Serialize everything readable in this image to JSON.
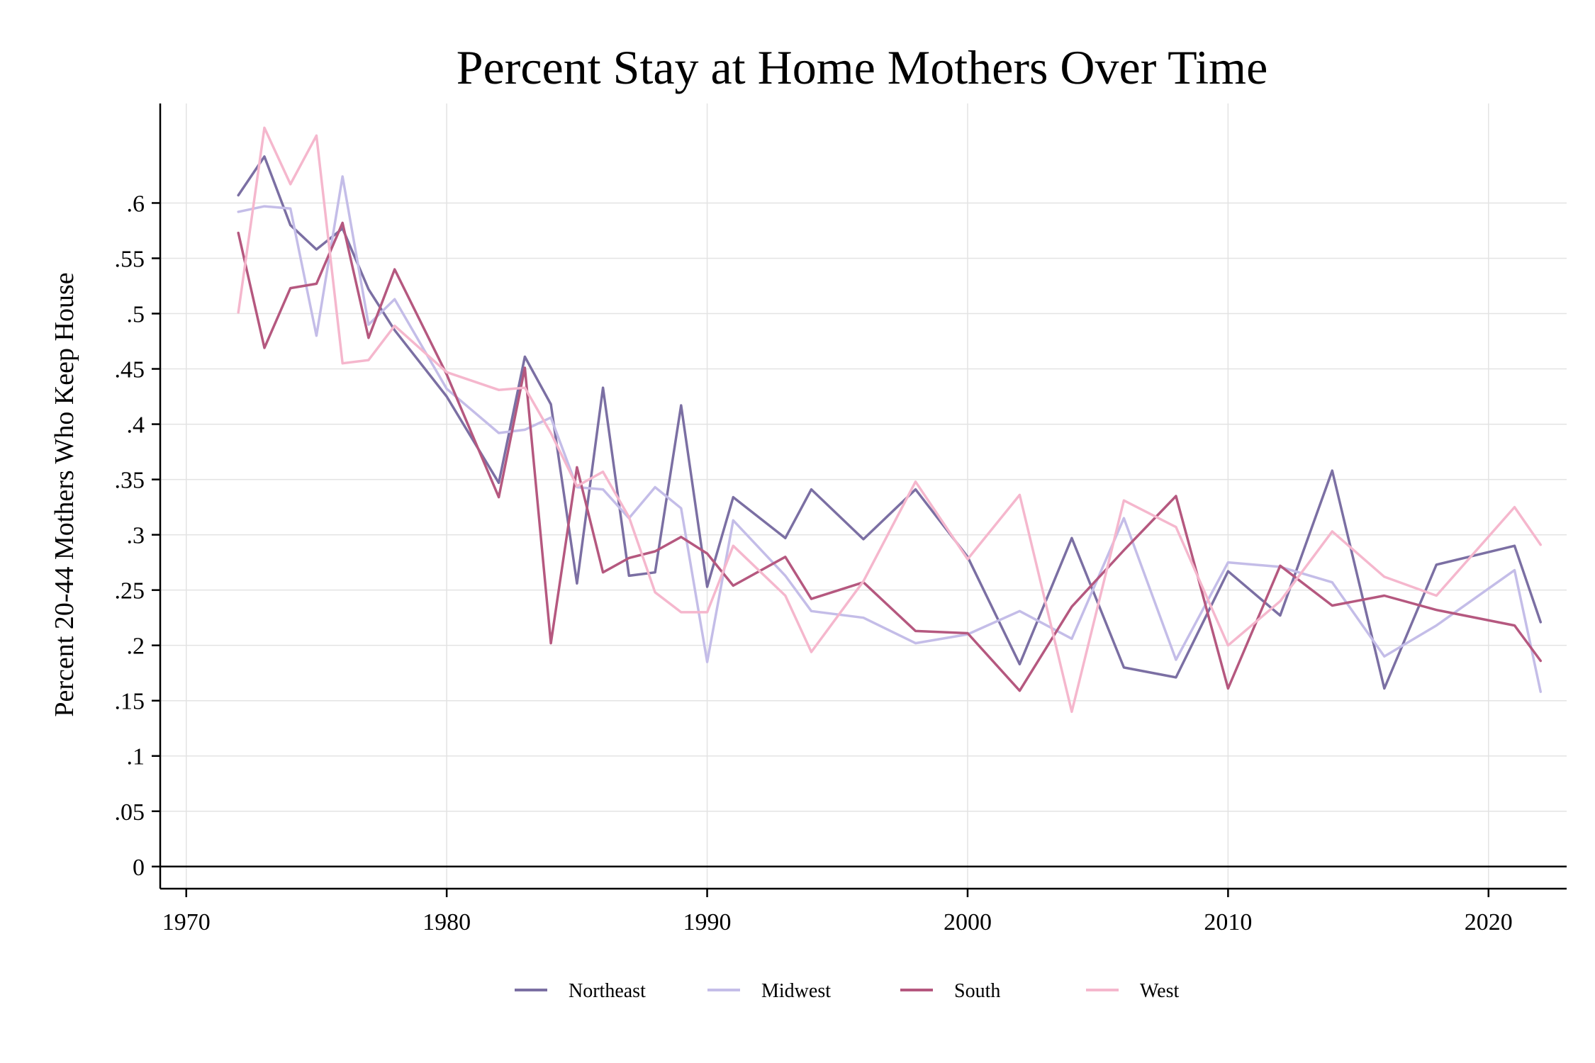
{
  "chart_data": {
    "type": "line",
    "title": "Percent Stay at Home Mothers Over Time",
    "xlabel": "",
    "ylabel": "Percent 20-44 Mothers Who Keep House",
    "xlim": [
      1969,
      2023
    ],
    "ylim": [
      -0.02,
      0.69
    ],
    "x_ticks": [
      1970,
      1980,
      1990,
      2000,
      2010,
      2020
    ],
    "x_tick_labels": [
      "1970",
      "1980",
      "1990",
      "2000",
      "2010",
      "2020"
    ],
    "y_ticks": [
      0,
      0.05,
      0.1,
      0.15,
      0.2,
      0.25,
      0.3,
      0.35,
      0.4,
      0.45,
      0.5,
      0.55,
      0.6
    ],
    "y_tick_labels": [
      "0",
      ".05",
      ".1",
      ".15",
      ".2",
      ".25",
      ".3",
      ".35",
      ".4",
      ".45",
      ".5",
      ".55",
      ".6"
    ],
    "grid": true,
    "legend_position": "bottom",
    "x": [
      1972,
      1973,
      1974,
      1975,
      1976,
      1977,
      1978,
      1980,
      1982,
      1983,
      1984,
      1985,
      1986,
      1987,
      1988,
      1989,
      1990,
      1991,
      1993,
      1994,
      1996,
      1998,
      2000,
      2002,
      2004,
      2006,
      2008,
      2010,
      2012,
      2014,
      2016,
      2018,
      2021,
      2022
    ],
    "series": [
      {
        "name": "Northeast",
        "color": "#7b6fa3",
        "values": [
          0.607,
          0.642,
          0.58,
          0.558,
          0.577,
          0.522,
          0.485,
          0.425,
          0.347,
          0.461,
          0.418,
          0.256,
          0.433,
          0.263,
          0.266,
          0.417,
          0.253,
          0.334,
          0.297,
          0.341,
          0.296,
          0.341,
          0.28,
          0.183,
          0.297,
          0.18,
          0.171,
          0.267,
          0.227,
          0.358,
          0.161,
          0.273,
          0.29,
          0.221
        ]
      },
      {
        "name": "Midwest",
        "color": "#c4bde8",
        "values": [
          0.592,
          0.597,
          0.595,
          0.48,
          0.624,
          0.49,
          0.513,
          0.432,
          0.392,
          0.395,
          0.406,
          0.343,
          0.341,
          0.315,
          0.343,
          0.324,
          0.185,
          0.313,
          0.263,
          0.231,
          0.225,
          0.202,
          0.21,
          0.231,
          0.206,
          0.315,
          0.187,
          0.275,
          0.271,
          0.257,
          0.19,
          0.218,
          0.268,
          0.158
        ]
      },
      {
        "name": "South",
        "color": "#b5587f",
        "values": [
          0.573,
          0.469,
          0.523,
          0.527,
          0.582,
          0.478,
          0.54,
          0.445,
          0.334,
          0.451,
          0.202,
          0.361,
          0.266,
          0.279,
          0.285,
          0.298,
          0.283,
          0.254,
          0.28,
          0.242,
          0.257,
          0.213,
          0.211,
          0.159,
          0.235,
          0.286,
          0.335,
          0.161,
          0.272,
          0.236,
          0.245,
          0.232,
          0.218,
          0.186
        ]
      },
      {
        "name": "West",
        "color": "#f5b7cd",
        "values": [
          0.501,
          0.668,
          0.617,
          0.661,
          0.455,
          0.458,
          0.489,
          0.447,
          0.431,
          0.433,
          0.392,
          0.344,
          0.357,
          0.316,
          0.248,
          0.23,
          0.23,
          0.29,
          0.245,
          0.194,
          0.258,
          0.348,
          0.278,
          0.336,
          0.14,
          0.331,
          0.307,
          0.2,
          0.24,
          0.303,
          0.262,
          0.245,
          0.325,
          0.291
        ]
      }
    ]
  }
}
